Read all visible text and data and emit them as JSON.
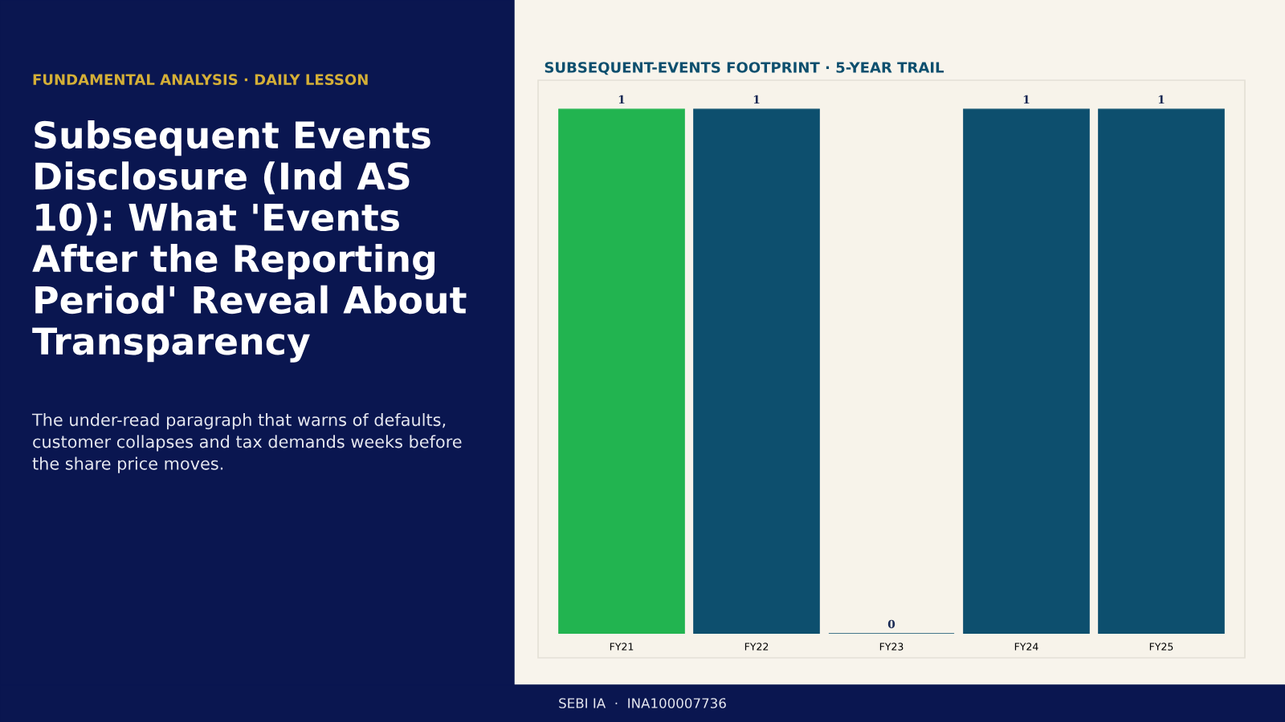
{
  "chart_data": {
    "type": "bar",
    "title": "SUBSEQUENT-EVENTS FOOTPRINT · 5-YEAR TRAIL",
    "categories": [
      "FY21",
      "FY22",
      "FY23",
      "FY24",
      "FY25"
    ],
    "values": [
      1,
      1,
      0,
      1,
      1
    ],
    "colors": [
      "#22b450",
      "#0d4f6e",
      "#0d4f6e",
      "#0d4f6e",
      "#0d4f6e"
    ],
    "data_labels": true,
    "grid": false,
    "legend": false,
    "tick_labels": "x",
    "annotations": [
      "FUNDAMENTAL ANALYSIS · DAILY LESSON",
      "Subsequent Events Disclosure (Ind AS 10): What 'Events After the Reporting Period' Reveal About Transparency",
      "The under-read paragraph that warns of defaults, customer collapses and tax demands weeks before the share price moves.",
      "SEBI IA  ·  INA100007736"
    ]
  }
}
